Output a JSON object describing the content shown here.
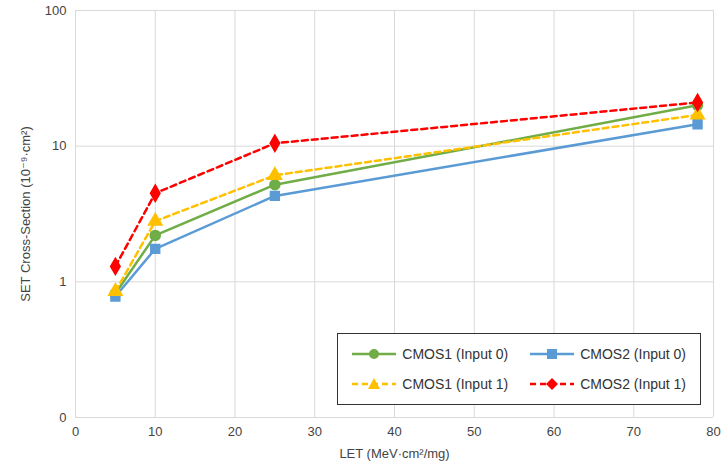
{
  "chart_data": {
    "type": "line",
    "x_label": "LET (MeV·cm²/mg)",
    "y_label": "SET Cross-Section (10⁻⁹·cm²)",
    "x": [
      5,
      10,
      25,
      78
    ],
    "series": [
      {
        "name": "CMOS1 (Input 0)",
        "color": "#70ad47",
        "marker": "circle",
        "line_style": "solid",
        "values": [
          0.82,
          2.2,
          5.2,
          20
        ]
      },
      {
        "name": "CMOS2 (Input 0)",
        "color": "#5b9bd5",
        "marker": "square",
        "line_style": "solid",
        "values": [
          0.78,
          1.75,
          4.3,
          14.5
        ]
      },
      {
        "name": "CMOS1 (Input 1)",
        "color": "#ffc000",
        "marker": "triangle",
        "line_style": "dashed",
        "values": [
          0.85,
          2.8,
          6.1,
          17
        ]
      },
      {
        "name": "CMOS2 (Input 1)",
        "color": "#ff0000",
        "marker": "diamond",
        "line_style": "dashed",
        "values": [
          1.3,
          4.5,
          10.5,
          21
        ]
      }
    ],
    "xlim": [
      0,
      80
    ],
    "xticks": [
      0,
      10,
      20,
      30,
      40,
      50,
      60,
      70,
      80
    ],
    "ylim": [
      0.1,
      100
    ],
    "yticks": [
      {
        "value": 0.1,
        "label": "0"
      },
      1,
      10,
      100
    ],
    "log": "y",
    "grid": true,
    "legend": "lower right"
  }
}
